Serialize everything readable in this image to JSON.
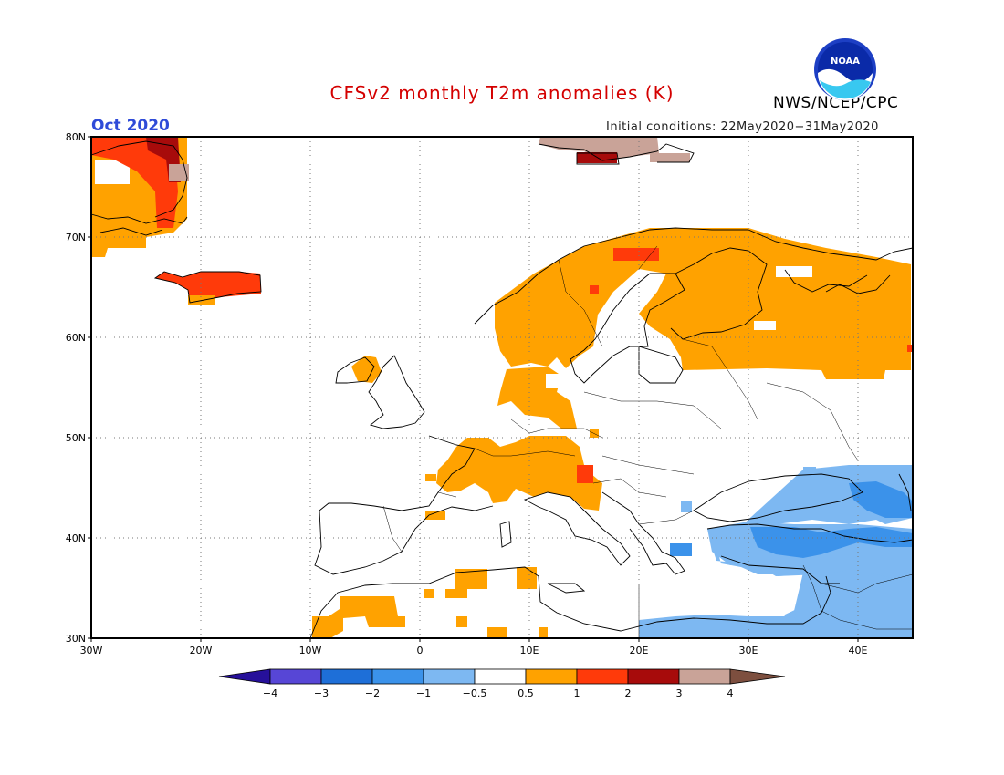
{
  "title": "CFSv2 monthly T2m anomalies (K)",
  "month_label": "Oct 2020",
  "initial_conditions": "Initial conditions: 22May2020−31May2020",
  "organization": "NWS/NCEP/CPC",
  "logo_text": "NOAA",
  "map": {
    "lon_ticks": [
      "30W",
      "20W",
      "10W",
      "0",
      "10E",
      "20E",
      "30E",
      "40E"
    ],
    "lat_ticks": [
      "80N",
      "70N",
      "60N",
      "50N",
      "40N",
      "30N"
    ],
    "lon_range": [
      -30,
      45
    ],
    "lat_range": [
      30,
      80
    ],
    "grid": "dotted",
    "ocean_color": "#ffffff"
  },
  "colorbar": {
    "ticks": [
      "−4",
      "−3",
      "−2",
      "−1",
      "−0.5",
      "0.5",
      "1",
      "2",
      "3",
      "4"
    ],
    "colors": [
      "#26109a",
      "#5746d6",
      "#1e6fd8",
      "#3b92ea",
      "#7db8f2",
      "#ffffff",
      "#ffa200",
      "#ff3a0a",
      "#a70b0b",
      "#c9a398",
      "#7d4f3f"
    ]
  },
  "anomaly_regions": [
    {
      "region": "Greenland (east)",
      "level": "1 to 3"
    },
    {
      "region": "Iceland",
      "level": "1 to 2"
    },
    {
      "region": "Scandinavia & NW Russia",
      "level": "0.5 to 2"
    },
    {
      "region": "Central Europe & Alps",
      "level": "0.5 to 1"
    },
    {
      "region": "Svalbard",
      "level": "3 to 4"
    },
    {
      "region": "Turkey, Black Sea & E. Mediterranean",
      "level": "-0.5 to -2"
    },
    {
      "region": "North Africa",
      "level": "0.5 to 1"
    }
  ]
}
